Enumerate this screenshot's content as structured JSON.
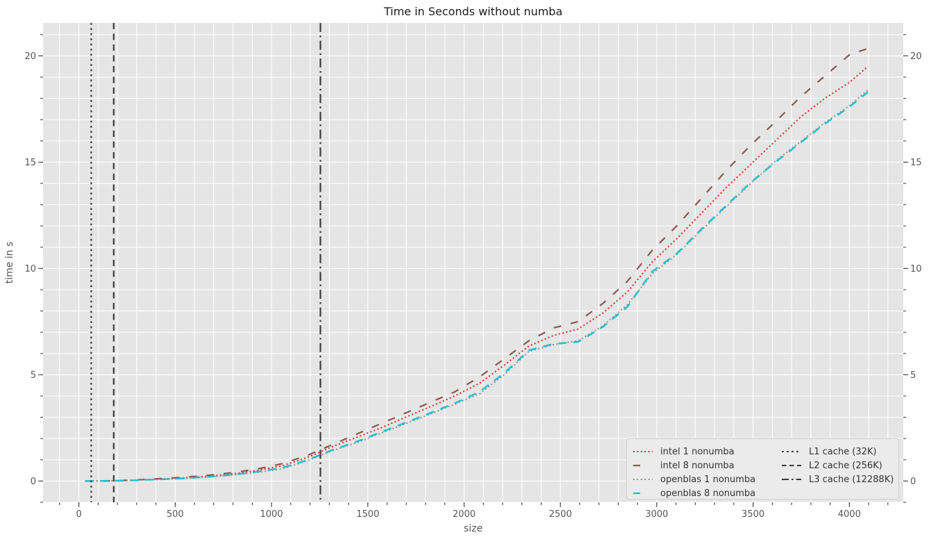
{
  "title": "Time in Seconds without numba",
  "axes": {
    "xlabel": "size",
    "ylabel": "time in s",
    "x_range": [
      -186,
      4280
    ],
    "y_range": [
      -1,
      21.55
    ],
    "x_ticks_major": [
      0,
      500,
      1000,
      1500,
      2000,
      2500,
      3000,
      3500,
      4000
    ],
    "x_minor_step": 100,
    "y_ticks_major": [
      0,
      5,
      10,
      15,
      20
    ],
    "y_minor_step": 1,
    "grid": true,
    "background_color": "#e5e5e5",
    "grid_color": "#ffffff",
    "tick_color": "#444444",
    "tick_label_color": "#555555"
  },
  "chart_data": {
    "type": "line",
    "title": "Time in Seconds without numba",
    "xlabel": "size",
    "ylabel": "time in s",
    "legend_position": "lower right",
    "x": [
      32,
      160,
      288,
      416,
      544,
      672,
      800,
      928,
      1056,
      1184,
      1312,
      1440,
      1568,
      1696,
      1824,
      1952,
      2080,
      2208,
      2336,
      2464,
      2592,
      2720,
      2848,
      2976,
      3104,
      3232,
      3360,
      3488,
      3616,
      3744,
      3872,
      4000,
      4096
    ],
    "series": [
      {
        "name": "intel 1 nonumba",
        "color": "#d62420",
        "linestyle": "dotted",
        "values": [
          0,
          0.01,
          0.04,
          0.09,
          0.15,
          0.23,
          0.34,
          0.5,
          0.72,
          1.1,
          1.6,
          2.05,
          2.5,
          3.0,
          3.5,
          4.0,
          4.6,
          5.45,
          6.35,
          6.85,
          7.15,
          7.9,
          8.9,
          10.3,
          11.4,
          12.6,
          13.8,
          14.9,
          16.0,
          17.1,
          18.0,
          18.75,
          19.5
        ]
      },
      {
        "name": "intel 8 nonumba",
        "color": "#8c564b",
        "linestyle": "dashed",
        "values": [
          0,
          0.01,
          0.05,
          0.11,
          0.18,
          0.27,
          0.4,
          0.57,
          0.82,
          1.2,
          1.7,
          2.2,
          2.7,
          3.2,
          3.7,
          4.2,
          4.9,
          5.75,
          6.6,
          7.2,
          7.5,
          8.35,
          9.4,
          10.85,
          12.0,
          13.3,
          14.6,
          15.8,
          16.9,
          18.05,
          19.05,
          20.05,
          20.35
        ]
      },
      {
        "name": "openblas 1 nonumba",
        "color": "#8f8f8f",
        "linestyle": "dotted",
        "values": [
          0,
          0.01,
          0.03,
          0.07,
          0.12,
          0.19,
          0.28,
          0.41,
          0.58,
          0.95,
          1.42,
          1.8,
          2.25,
          2.7,
          3.15,
          3.62,
          4.1,
          5.0,
          6.1,
          6.42,
          6.6,
          7.3,
          8.3,
          9.75,
          10.65,
          11.8,
          12.9,
          14.0,
          15.05,
          15.95,
          16.85,
          17.65,
          18.4
        ]
      },
      {
        "name": "openblas 8 nonumba",
        "color": "#17becf",
        "linestyle": "dashed",
        "values": [
          0,
          0.01,
          0.035,
          0.075,
          0.13,
          0.2,
          0.3,
          0.44,
          0.62,
          0.98,
          1.45,
          1.85,
          2.3,
          2.75,
          3.2,
          3.66,
          4.2,
          5.08,
          6.15,
          6.45,
          6.55,
          7.25,
          8.2,
          9.85,
          10.7,
          11.85,
          12.95,
          14.05,
          15.0,
          15.9,
          16.8,
          17.6,
          18.3
        ]
      }
    ],
    "vlines": [
      {
        "name": "L1 cache (32K)",
        "x": 64,
        "color": "#3a3a3a",
        "linestyle": "dotted"
      },
      {
        "name": "L2 cache (256K)",
        "x": 181,
        "color": "#3a3a3a",
        "linestyle": "dashed"
      },
      {
        "name": "L3 cache (12288K)",
        "x": 1254,
        "color": "#3a3a3a",
        "linestyle": "dashdot"
      }
    ]
  }
}
